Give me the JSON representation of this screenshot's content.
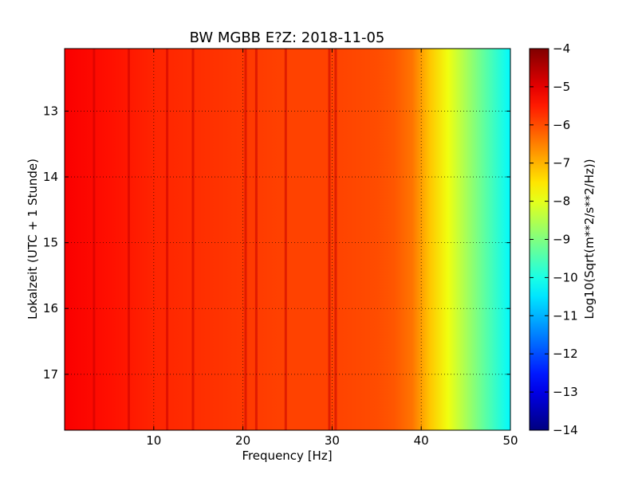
{
  "chart_data": {
    "type": "heatmap",
    "title": "BW MGBB E?Z: 2018-11-05",
    "xlabel": "Frequency [Hz]",
    "ylabel": "Lokalzeit (UTC + 1 Stunde)",
    "xlim": [
      0,
      50
    ],
    "ylim": [
      17.85,
      12.05
    ],
    "y_inverted": true,
    "x_ticks": [
      10,
      20,
      30,
      40,
      50
    ],
    "y_ticks": [
      13,
      14,
      15,
      16,
      17
    ],
    "grid": true,
    "colormap": "jet",
    "colorbar": {
      "label": "Log10(Sqrt(m**2/s**2/Hz))",
      "range": [
        -14,
        -4
      ],
      "ticks": [
        -4,
        -5,
        -6,
        -7,
        -8,
        -9,
        -10,
        -11,
        -12,
        -13,
        -14
      ]
    },
    "profile_frequency_hz": [
      0,
      5,
      10,
      15,
      20,
      25,
      30,
      35,
      37,
      39,
      41,
      43,
      45,
      47,
      50
    ],
    "profile_log10_amplitude": [
      -5.2,
      -5.4,
      -5.6,
      -5.7,
      -5.8,
      -5.9,
      -5.9,
      -6.0,
      -6.1,
      -6.4,
      -7.2,
      -7.9,
      -8.6,
      -9.3,
      -10.3
    ],
    "narrowband_lines_hz": [
      3.3,
      7.2,
      11.5,
      14.4,
      20.3,
      21.5,
      24.8,
      29.7,
      30.4
    ]
  }
}
